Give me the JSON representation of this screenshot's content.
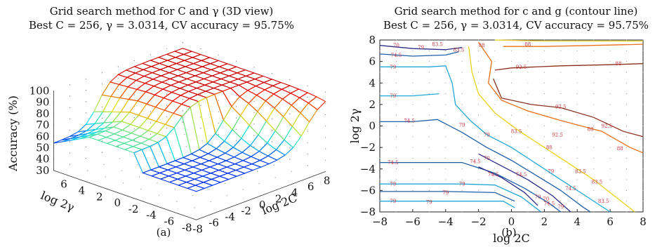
{
  "panel_a": {
    "title_line1": "Grid search method for C and γ (3D view)",
    "title_line2": "Best C = 256, γ = 3.0314, CV accuracy = 95.75%",
    "caption": "(a)"
  },
  "panel_b": {
    "title_line1": "Grid search method for c and g (contour line)",
    "title_line2": "Best C = 256, γ = 3.0314, CV accuracy = 95.75%",
    "caption": "(b)"
  },
  "chart_data": [
    {
      "type": "surface",
      "title": "Grid search method for C and γ (3D view)",
      "subtitle": "Best C = 256, γ = 3.0314, CV accuracy = 95.75%",
      "xlabel": "log 2C",
      "ylabel": "log 2γ",
      "zlabel": "Accuracy (%)",
      "x_ticks": [
        "-8",
        "-6",
        "-4",
        "-2",
        "0",
        "2",
        "4",
        "6",
        "8"
      ],
      "y_ticks": [
        "6",
        "4",
        "2",
        "0",
        "-2",
        "-4",
        "-6",
        "-8"
      ],
      "z_ticks": [
        "100",
        "90",
        "80",
        "70",
        "60",
        "50",
        "40",
        "30"
      ],
      "xlim": [
        -8,
        8
      ],
      "ylim": [
        -8,
        8
      ],
      "zlim": [
        30,
        100
      ],
      "grid": true,
      "colormap": "jet"
    },
    {
      "type": "contour",
      "title": "Grid search method for c and g (contour line)",
      "subtitle": "Best C = 256, γ = 3.0314, CV accuracy = 95.75%",
      "xlabel": "log 2C",
      "ylabel": "log 2γ",
      "x_ticks": [
        "-8",
        "-6",
        "-4",
        "-2",
        "0",
        "2",
        "4",
        "6",
        "8"
      ],
      "y_ticks": [
        "8",
        "6",
        "4",
        "2",
        "0",
        "-2",
        "-4",
        "-6",
        "-8"
      ],
      "xlim": [
        -8,
        8
      ],
      "ylim": [
        -8,
        8
      ],
      "grid": true,
      "levels": [
        {
          "value": "70",
          "color": "#2c2c86"
        },
        {
          "value": "74.5",
          "color": "#1f5fa8"
        },
        {
          "value": "79",
          "color": "#22a8d6"
        },
        {
          "value": "83.5",
          "color": "#e8d21a"
        },
        {
          "value": "88",
          "color": "#e8701a"
        },
        {
          "value": "92.5",
          "color": "#8a2f1e"
        }
      ],
      "contour_labels": [
        "70",
        "74.5",
        "79",
        "83.5",
        "88",
        "83.5",
        "88",
        "92.5",
        "79",
        "79",
        "74.5",
        "92.5",
        "88",
        "79",
        "83.5",
        "88",
        "92.5",
        "74.5",
        "79",
        "83.5",
        "88",
        "70",
        "74.5",
        "79",
        "83.5",
        "88",
        "92.5",
        "74.5",
        "79",
        "70",
        "74.5",
        "79",
        "79",
        "74.5",
        "70",
        "79",
        "83.5",
        "79",
        "79",
        "74.5"
      ]
    }
  ]
}
